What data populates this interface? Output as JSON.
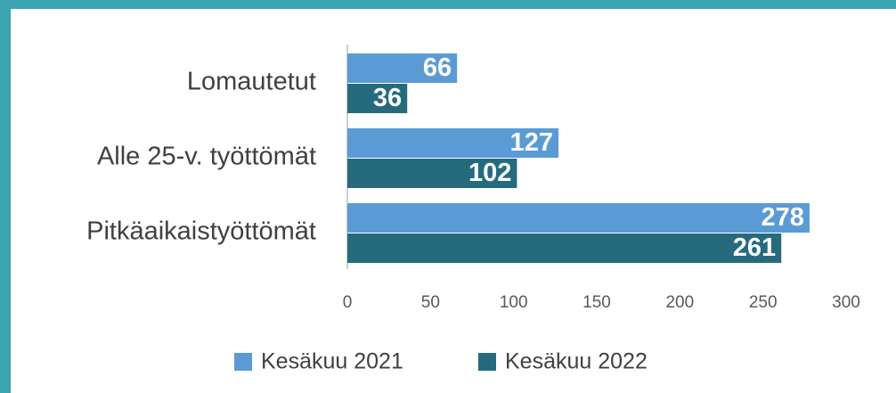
{
  "chart_data": {
    "type": "barh",
    "categories": [
      "Lomautetut",
      "Alle 25-v. työttömät",
      "Pitkäaikaistyöttömät"
    ],
    "series": [
      {
        "name": "Kesäkuu 2021",
        "color": "#5b9bd5",
        "values": [
          66,
          127,
          278
        ]
      },
      {
        "name": "Kesäkuu 2022",
        "color": "#266b7d",
        "values": [
          36,
          102,
          261
        ]
      }
    ],
    "xlim": [
      0,
      300
    ],
    "xticks": [
      0,
      50,
      100,
      150,
      200,
      250,
      300
    ],
    "grid": false,
    "legend": "bottom"
  }
}
